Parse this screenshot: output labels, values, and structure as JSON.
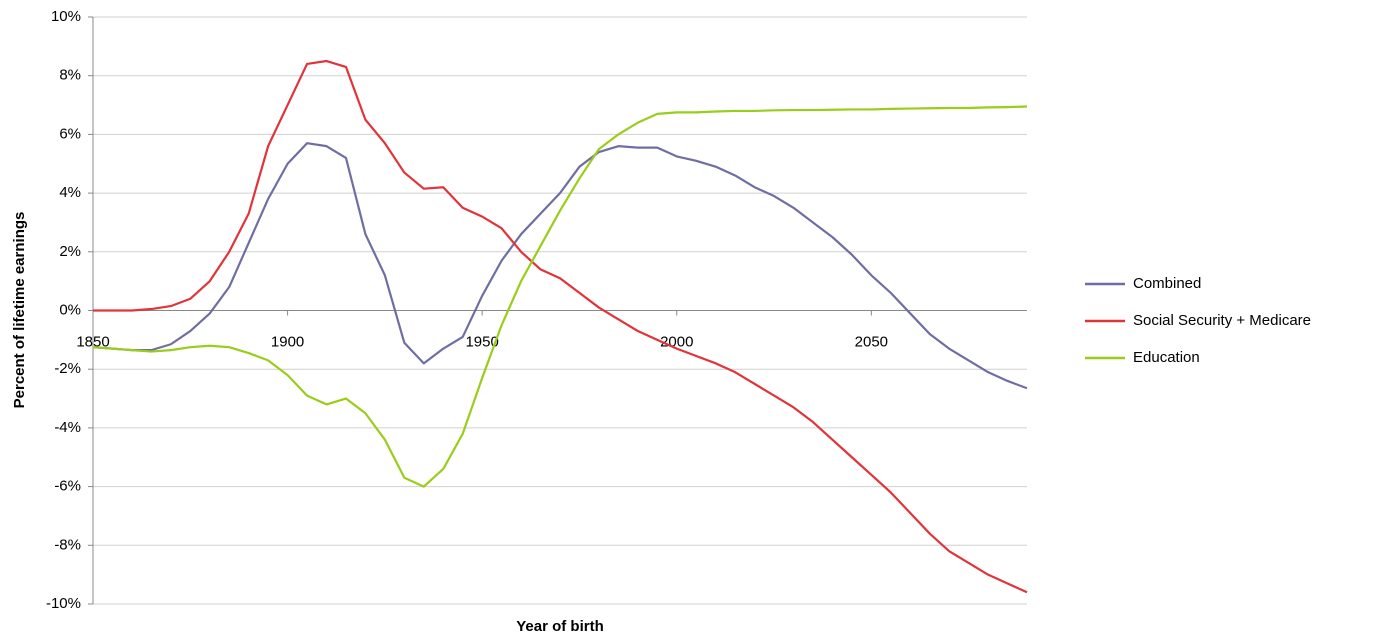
{
  "chart_data": {
    "type": "line",
    "xlabel": "Year of birth",
    "ylabel": "Percent of lifetime earnings",
    "x": [
      1850,
      1855,
      1860,
      1865,
      1870,
      1875,
      1880,
      1885,
      1890,
      1895,
      1900,
      1905,
      1910,
      1915,
      1920,
      1925,
      1930,
      1935,
      1940,
      1945,
      1950,
      1955,
      1960,
      1965,
      1970,
      1975,
      1980,
      1985,
      1990,
      1995,
      2000,
      2005,
      2010,
      2015,
      2020,
      2025,
      2030,
      2035,
      2040,
      2045,
      2050,
      2055,
      2060,
      2065,
      2070,
      2075,
      2080,
      2085,
      2090
    ],
    "series": [
      {
        "name": "Combined",
        "color": "#6e6ea3",
        "values": [
          -1.25,
          -1.3,
          -1.35,
          -1.35,
          -1.15,
          -0.7,
          -0.1,
          0.8,
          2.3,
          3.8,
          5.0,
          5.7,
          5.6,
          5.2,
          2.6,
          1.2,
          -1.1,
          -1.8,
          -1.3,
          -0.9,
          0.5,
          1.7,
          2.6,
          3.3,
          4.0,
          4.9,
          5.4,
          5.6,
          5.55,
          5.55,
          5.25,
          5.1,
          4.9,
          4.6,
          4.2,
          3.9,
          3.5,
          3.0,
          2.5,
          1.9,
          1.2,
          0.6,
          -0.1,
          -0.8,
          -1.3,
          -1.7,
          -2.1,
          -2.4,
          -2.65
        ]
      },
      {
        "name": "Social Security + Medicare",
        "color": "#e0343a",
        "values": [
          0,
          0,
          0,
          0.05,
          0.15,
          0.4,
          1.0,
          2.0,
          3.3,
          5.6,
          7.0,
          8.4,
          8.5,
          8.3,
          6.5,
          5.7,
          4.7,
          4.15,
          4.2,
          3.5,
          3.2,
          2.8,
          2.0,
          1.4,
          1.1,
          0.6,
          0.1,
          -0.3,
          -0.7,
          -1.0,
          -1.3,
          -1.55,
          -1.8,
          -2.1,
          -2.5,
          -2.9,
          -3.3,
          -3.8,
          -4.4,
          -5.0,
          -5.6,
          -6.2,
          -6.9,
          -7.6,
          -8.2,
          -8.6,
          -9.0,
          -9.3,
          -9.6
        ]
      },
      {
        "name": "Education",
        "color": "#9acd1a",
        "values": [
          -1.25,
          -1.3,
          -1.35,
          -1.4,
          -1.35,
          -1.25,
          -1.2,
          -1.25,
          -1.45,
          -1.7,
          -2.2,
          -2.9,
          -3.2,
          -3.0,
          -3.5,
          -4.4,
          -5.7,
          -6.0,
          -5.4,
          -4.2,
          -2.3,
          -0.5,
          1.0,
          2.2,
          3.4,
          4.5,
          5.5,
          6.0,
          6.4,
          6.7,
          6.75,
          6.75,
          6.78,
          6.8,
          6.8,
          6.82,
          6.83,
          6.83,
          6.84,
          6.85,
          6.85,
          6.87,
          6.88,
          6.89,
          6.9,
          6.9,
          6.92,
          6.93,
          6.95
        ]
      }
    ],
    "xlim": [
      1850,
      2090
    ],
    "ylim": [
      -10,
      10
    ],
    "xticks": [
      1850,
      1900,
      1950,
      2000,
      2050
    ],
    "yticks": [
      {
        "value": -10,
        "label": "-10%"
      },
      {
        "value": -8,
        "label": "-8%"
      },
      {
        "value": -6,
        "label": "-6%"
      },
      {
        "value": -4,
        "label": "-4%"
      },
      {
        "value": -2,
        "label": "-2%"
      },
      {
        "value": 0,
        "label": "0%"
      },
      {
        "value": 2,
        "label": "2%"
      },
      {
        "value": 4,
        "label": "4%"
      },
      {
        "value": 6,
        "label": "6%"
      },
      {
        "value": 8,
        "label": "8%"
      },
      {
        "value": 10,
        "label": "10%"
      }
    ],
    "grid": true,
    "legend": "right"
  }
}
